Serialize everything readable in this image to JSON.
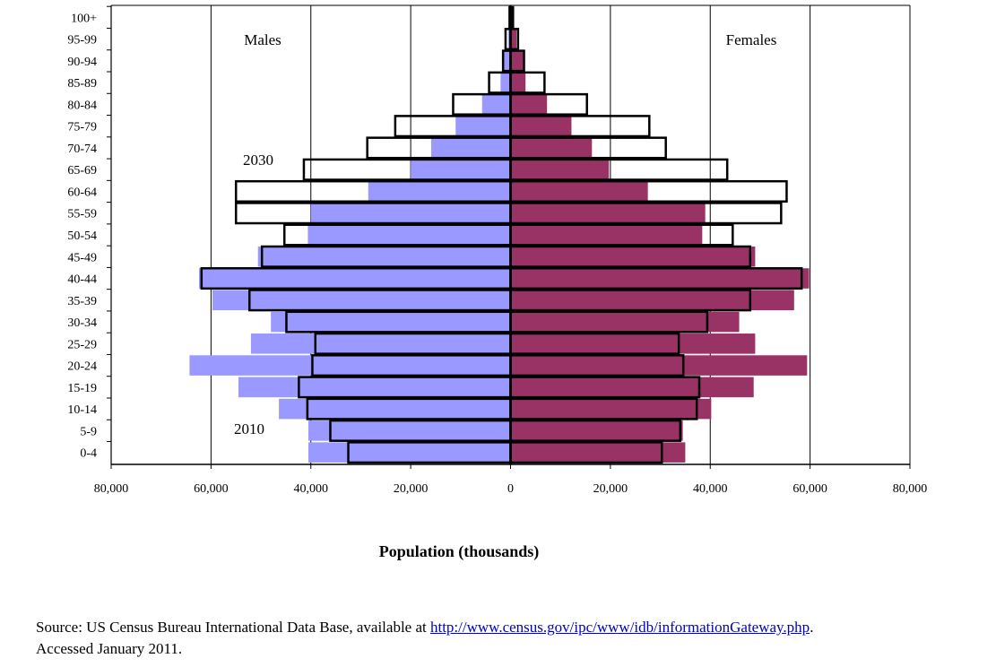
{
  "chart_data": {
    "type": "bar",
    "subtype": "population-pyramid",
    "xlabel": "Population (thousands)",
    "xlim": [
      -80000,
      80000
    ],
    "x_ticks": [
      -80000,
      -60000,
      -40000,
      -20000,
      0,
      20000,
      40000,
      60000,
      80000
    ],
    "x_tick_labels": [
      "80,000",
      "60,000",
      "40,000",
      "20,000",
      "0",
      "20,000",
      "40,000",
      "60,000",
      "80,000"
    ],
    "grid": "vertical",
    "categories": [
      "100+",
      "95-99",
      "90-94",
      "85-89",
      "80-84",
      "75-79",
      "70-74",
      "65-69",
      "60-64",
      "55-59",
      "50-54",
      "45-49",
      "40-44",
      "35-39",
      "30-34",
      "25-29",
      "20-24",
      "15-19",
      "10-14",
      "5-9",
      "0-4"
    ],
    "side_labels": {
      "left": "Males",
      "right": "Females"
    },
    "series_labels": {
      "filled": "2010",
      "outlined": "2030"
    },
    "colors": {
      "males_2010": "#9999ff",
      "females_2010": "#993366",
      "outline_2030": "#000000",
      "grid": "#000000"
    },
    "series": [
      {
        "name": "Males",
        "year": "2010",
        "style": "filled",
        "side": "left",
        "values": [
          100,
          500,
          1500,
          2000,
          5700,
          11000,
          15900,
          20000,
          28500,
          40000,
          40600,
          50600,
          62400,
          59700,
          48000,
          52000,
          64300,
          54500,
          46400,
          40500,
          40500
        ]
      },
      {
        "name": "Females",
        "year": "2010",
        "style": "filled",
        "side": "right",
        "values": [
          300,
          1200,
          2500,
          3000,
          7300,
          12200,
          16300,
          19700,
          27500,
          39000,
          38400,
          49000,
          59800,
          56800,
          45800,
          49000,
          59400,
          48700,
          40200,
          34500,
          35000
        ]
      },
      {
        "name": "Males",
        "year": "2030",
        "style": "outlined",
        "side": "left",
        "values": [
          200,
          1000,
          1500,
          4300,
          11500,
          23100,
          28700,
          41400,
          55000,
          55000,
          45300,
          49800,
          61900,
          52300,
          44900,
          39100,
          39700,
          42400,
          40700,
          36100,
          32500
        ]
      },
      {
        "name": "Females",
        "year": "2030",
        "style": "outlined",
        "side": "right",
        "values": [
          500,
          1500,
          2700,
          6800,
          15300,
          27800,
          31100,
          43400,
          55300,
          54200,
          44500,
          48000,
          58300,
          48000,
          39400,
          33700,
          34600,
          37800,
          37300,
          34000,
          30300
        ]
      }
    ]
  },
  "source": {
    "prefix": "Source: US Census Bureau International Data Base, available at ",
    "link": "http://www.census.gov/ipc/www/idb/informationGateway.php",
    "suffix": ".",
    "line2": "Accessed January 2011."
  }
}
